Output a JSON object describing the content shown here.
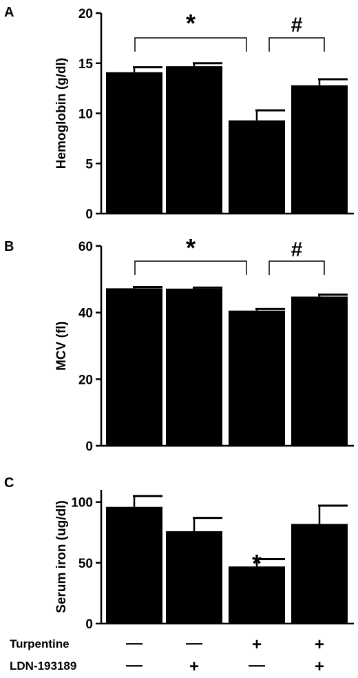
{
  "chart_data": [
    {
      "type": "bar",
      "panel": "A",
      "ylabel": "Hemoglobin (g/dl)",
      "ylim": [
        0,
        20
      ],
      "yticks": [
        0,
        5,
        10,
        15,
        20
      ],
      "categories": [
        "1",
        "2",
        "3",
        "4"
      ],
      "values": [
        14.1,
        14.7,
        9.3,
        12.8
      ],
      "errors": [
        0.5,
        0.3,
        1.0,
        0.6
      ],
      "color": "#000000",
      "significance": [
        {
          "symbol": "*",
          "from": 0,
          "to": 2
        },
        {
          "symbol": "#",
          "from": 2,
          "to": 3
        }
      ]
    },
    {
      "type": "bar",
      "panel": "B",
      "ylabel": "MCV (fl)",
      "ylim": [
        0,
        60
      ],
      "yticks": [
        0,
        20,
        40,
        60
      ],
      "categories": [
        "1",
        "2",
        "3",
        "4"
      ],
      "values": [
        47.3,
        47.2,
        40.6,
        44.8
      ],
      "errors": [
        0.4,
        0.3,
        0.5,
        0.6
      ],
      "color": "#000000",
      "significance": [
        {
          "symbol": "*",
          "from": 0,
          "to": 2
        },
        {
          "symbol": "#",
          "from": 2,
          "to": 3
        }
      ]
    },
    {
      "type": "bar",
      "panel": "C",
      "ylabel": "Serum iron (ug/dl)",
      "ylim": [
        0,
        110
      ],
      "yticks": [
        0,
        50,
        100
      ],
      "categories": [
        "1",
        "2",
        "3",
        "4"
      ],
      "values": [
        96,
        76,
        47,
        82
      ],
      "errors": [
        9,
        11,
        6,
        15
      ],
      "color": "#000000",
      "significance": [
        {
          "symbol": "*",
          "bar": 2
        }
      ]
    }
  ],
  "treatments": [
    {
      "label": "Turpentine",
      "signs": [
        "—",
        "—",
        "+",
        "+"
      ]
    },
    {
      "label": "LDN-193189",
      "signs": [
        "—",
        "+",
        "—",
        "+"
      ]
    }
  ]
}
